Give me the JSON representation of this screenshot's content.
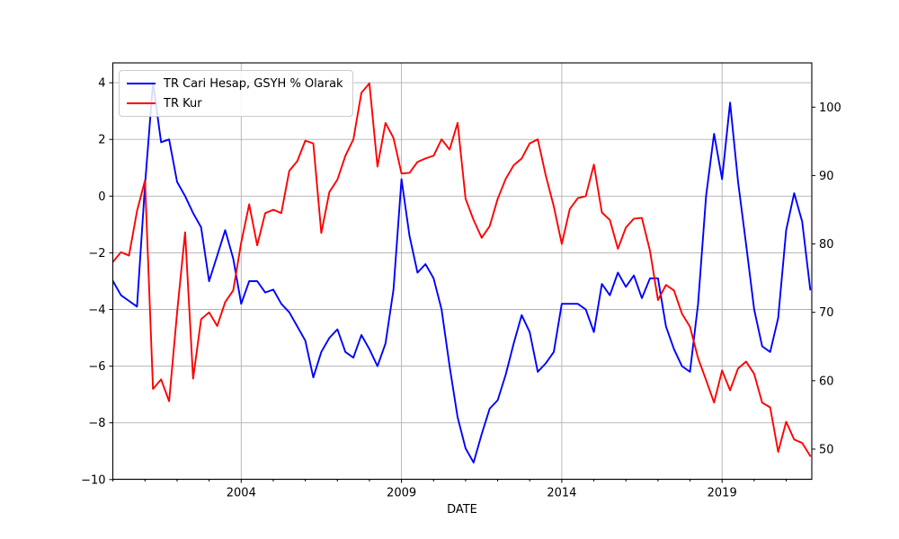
{
  "figure": {
    "xlabel": "DATE",
    "background_color": "#ffffff",
    "grid_color": "#b0b0b0",
    "spine_color": "#000000",
    "legend": [
      {
        "label": "TR Cari Hesap, GSYH % Olarak",
        "color": "#0000ff"
      },
      {
        "label": "TR Kur",
        "color": "#ff0000"
      }
    ]
  },
  "chart_data": {
    "type": "line",
    "title": "",
    "xlabel": "DATE",
    "grid": true,
    "legend_position": "upper left",
    "x_start_year": 2000.0,
    "x_step_years": 0.25,
    "x_range": [
      1999.99,
      2021.8
    ],
    "x_major_ticks": [
      2004,
      2009,
      2014,
      2019
    ],
    "x_major_tick_labels": [
      "2004",
      "2009",
      "2014",
      "2019"
    ],
    "x_minor_tick_years": [
      2000,
      2001,
      2002,
      2003,
      2005,
      2006,
      2007,
      2008,
      2010,
      2011,
      2012,
      2013,
      2015,
      2016,
      2017,
      2018,
      2020,
      2021
    ],
    "left_axis": {
      "range": [
        -10,
        4.7
      ],
      "ticks": [
        4,
        2,
        0,
        -2,
        -4,
        -6,
        -8,
        -10
      ],
      "tick_labels": [
        "4",
        "2",
        "0",
        "−2",
        "−4",
        "−6",
        "−8",
        "−10"
      ]
    },
    "right_axis": {
      "range": [
        45.6,
        106.5
      ],
      "ticks": [
        100,
        90,
        80,
        70,
        60,
        50
      ],
      "tick_labels": [
        "100",
        "90",
        "80",
        "70",
        "60",
        "50"
      ]
    },
    "series": [
      {
        "name": "TR Cari Hesap, GSYH % Olarak",
        "axis": "left",
        "color": "#0000ff",
        "values": [
          -3.0,
          -3.5,
          -3.7,
          -3.9,
          0.4,
          4.0,
          1.9,
          2.0,
          0.5,
          0.0,
          -0.6,
          -1.1,
          -3.0,
          -2.1,
          -1.2,
          -2.2,
          -3.8,
          -3.0,
          -3.0,
          -3.4,
          -3.3,
          -3.8,
          -4.1,
          -4.6,
          -5.1,
          -6.4,
          -5.5,
          -5.0,
          -4.7,
          -5.5,
          -5.7,
          -4.9,
          -5.4,
          -6.0,
          -5.2,
          -3.3,
          0.6,
          -1.4,
          -2.7,
          -2.4,
          -2.9,
          -4.0,
          -6.0,
          -7.8,
          -8.9,
          -9.4,
          -8.4,
          -7.5,
          -7.2,
          -6.3,
          -5.2,
          -4.2,
          -4.8,
          -6.2,
          -5.9,
          -5.5,
          -3.8,
          -3.8,
          -3.8,
          -4.0,
          -4.8,
          -3.1,
          -3.5,
          -2.7,
          -3.2,
          -2.8,
          -3.6,
          -2.9,
          -2.9,
          -4.6,
          -5.4,
          -6.0,
          -6.2,
          -3.8,
          0.0,
          2.2,
          0.6,
          3.3,
          0.5,
          -1.7,
          -4.0,
          -5.3,
          -5.5,
          -4.3,
          -1.2,
          0.1,
          -0.9,
          -3.3
        ]
      },
      {
        "name": "TR Kur",
        "axis": "right",
        "color": "#ff0000",
        "values": [
          77.4,
          78.8,
          78.3,
          84.8,
          89.3,
          58.8,
          60.2,
          57.0,
          70.0,
          81.7,
          60.3,
          69.0,
          70.0,
          68.0,
          71.5,
          73.2,
          80.2,
          85.8,
          79.8,
          84.5,
          85.0,
          84.5,
          90.7,
          92.1,
          95.1,
          94.7,
          81.6,
          87.6,
          89.4,
          92.9,
          95.3,
          102.1,
          103.5,
          91.3,
          97.7,
          95.5,
          90.3,
          90.4,
          92.0,
          92.5,
          92.9,
          95.3,
          93.8,
          97.7,
          86.6,
          83.5,
          80.9,
          82.6,
          86.6,
          89.5,
          91.5,
          92.5,
          94.7,
          95.3,
          90.0,
          85.5,
          80.0,
          85.1,
          86.7,
          87.0,
          91.6,
          84.6,
          83.5,
          79.3,
          82.4,
          83.7,
          83.8,
          79.0,
          71.8,
          74.0,
          73.2,
          69.8,
          67.9,
          63.3,
          60.1,
          56.8,
          61.5,
          58.6,
          61.8,
          62.8,
          61.0,
          56.8,
          56.1,
          49.6,
          54.0,
          51.4,
          50.9,
          49.0
        ]
      }
    ]
  }
}
